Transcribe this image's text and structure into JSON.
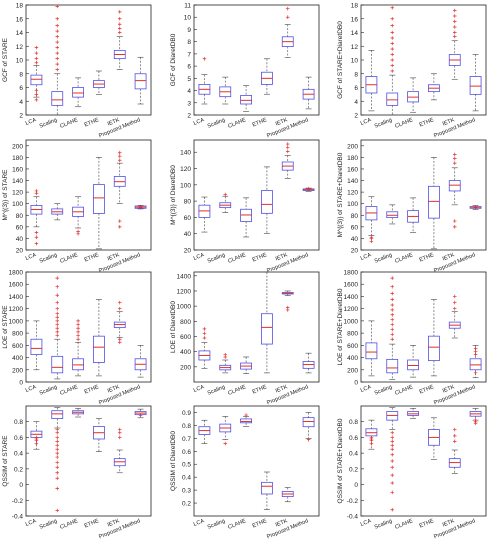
{
  "categories": [
    "LCA",
    "Scaling",
    "CLAHE",
    "ETHE",
    "IETK",
    "Proposed Method"
  ],
  "colors": {
    "box": "#5050e6",
    "median": "#e03030",
    "outlier": "#e03030",
    "whisker": "#444444",
    "axis": "#222222"
  },
  "chart_data": [
    {
      "type": "box",
      "ylabel": "GCF of STARE",
      "ylim": [
        2,
        18
      ],
      "yticks": [
        2,
        4,
        6,
        8,
        10,
        12,
        14,
        16,
        18
      ],
      "boxes": [
        {
          "q1": 6.4,
          "median": 7.2,
          "q3": 7.8,
          "low": 4.6,
          "high": 9.2,
          "outliers": [
            4.2,
            5.0,
            5.6,
            9.6,
            10.2,
            11.0,
            11.8
          ]
        },
        {
          "q1": 3.4,
          "median": 4.2,
          "q3": 5.4,
          "low": 2.0,
          "high": 8.0,
          "outliers": [
            8.6,
            9.4,
            10.2,
            11.0,
            11.8,
            12.6,
            13.4,
            14.2,
            15.0,
            16.0,
            17.8
          ]
        },
        {
          "q1": 4.6,
          "median": 5.2,
          "q3": 6.0,
          "low": 3.2,
          "high": 7.4,
          "outliers": []
        },
        {
          "q1": 6.0,
          "median": 6.5,
          "q3": 7.0,
          "low": 5.0,
          "high": 8.4,
          "outliers": []
        },
        {
          "q1": 10.2,
          "median": 10.8,
          "q3": 11.4,
          "low": 8.6,
          "high": 13.4,
          "outliers": [
            14.0,
            14.6,
            15.2,
            16.0,
            17.0
          ]
        },
        {
          "q1": 5.8,
          "median": 7.0,
          "q3": 8.0,
          "low": 3.6,
          "high": 10.4,
          "outliers": []
        }
      ]
    },
    {
      "type": "box",
      "ylabel": "GCF of DiaretDB0",
      "ylim": [
        2,
        11
      ],
      "yticks": [
        2,
        3,
        4,
        5,
        6,
        7,
        8,
        9,
        10,
        11
      ],
      "boxes": [
        {
          "q1": 3.7,
          "median": 4.1,
          "q3": 4.5,
          "low": 2.9,
          "high": 5.3,
          "outliers": [
            6.6
          ]
        },
        {
          "q1": 3.5,
          "median": 3.9,
          "q3": 4.3,
          "low": 2.9,
          "high": 5.1,
          "outliers": []
        },
        {
          "q1": 2.9,
          "median": 3.2,
          "q3": 3.6,
          "low": 2.3,
          "high": 4.4,
          "outliers": []
        },
        {
          "q1": 4.5,
          "median": 5.0,
          "q3": 5.5,
          "low": 3.7,
          "high": 6.6,
          "outliers": []
        },
        {
          "q1": 7.6,
          "median": 8.0,
          "q3": 8.4,
          "low": 6.7,
          "high": 9.4,
          "outliers": [
            10.0,
            10.7
          ]
        },
        {
          "q1": 3.3,
          "median": 3.7,
          "q3": 4.1,
          "low": 2.5,
          "high": 5.1,
          "outliers": []
        }
      ]
    },
    {
      "type": "box",
      "ylabel": "GCF of STARE+DiaretDB0",
      "ylim": [
        2,
        18
      ],
      "yticks": [
        2,
        4,
        6,
        8,
        10,
        12,
        14,
        16,
        18
      ],
      "boxes": [
        {
          "q1": 5.2,
          "median": 6.4,
          "q3": 7.6,
          "low": 2.6,
          "high": 11.4,
          "outliers": []
        },
        {
          "q1": 3.4,
          "median": 4.2,
          "q3": 5.2,
          "low": 2.0,
          "high": 7.8,
          "outliers": [
            8.4,
            9.2,
            10.0,
            10.8,
            11.6,
            12.4,
            13.2,
            14.0,
            15.0,
            16.0,
            17.6
          ]
        },
        {
          "q1": 3.9,
          "median": 4.6,
          "q3": 5.4,
          "low": 2.4,
          "high": 7.4,
          "outliers": []
        },
        {
          "q1": 5.4,
          "median": 5.9,
          "q3": 6.4,
          "low": 4.2,
          "high": 8.0,
          "outliers": []
        },
        {
          "q1": 9.2,
          "median": 10.0,
          "q3": 10.8,
          "low": 7.2,
          "high": 12.8,
          "outliers": [
            13.4,
            14.0,
            14.8,
            15.6,
            16.4,
            17.2
          ]
        },
        {
          "q1": 5.0,
          "median": 6.2,
          "q3": 7.6,
          "low": 2.6,
          "high": 10.8,
          "outliers": []
        }
      ]
    },
    {
      "type": "box",
      "ylabel": "M^{(3)} of STARE",
      "ylim": [
        20,
        210
      ],
      "yticks": [
        20,
        40,
        60,
        80,
        100,
        120,
        140,
        160,
        180,
        200
      ],
      "boxes": [
        {
          "q1": 82,
          "median": 90,
          "q3": 97,
          "low": 60,
          "high": 112,
          "outliers": [
            50,
            42,
            31,
            118,
            122
          ]
        },
        {
          "q1": 82,
          "median": 86,
          "q3": 91,
          "low": 72,
          "high": 100,
          "outliers": []
        },
        {
          "q1": 78,
          "median": 86,
          "q3": 94,
          "low": 58,
          "high": 112,
          "outliers": [
            52,
            48
          ]
        },
        {
          "q1": 83,
          "median": 110,
          "q3": 133,
          "low": 22,
          "high": 180,
          "outliers": []
        },
        {
          "q1": 130,
          "median": 138,
          "q3": 147,
          "low": 100,
          "high": 170,
          "outliers": [
            175,
            182,
            188,
            60,
            70
          ]
        },
        {
          "q1": 92,
          "median": 94,
          "q3": 96,
          "low": 91,
          "high": 97,
          "outliers": [
            93,
            95
          ]
        }
      ]
    },
    {
      "type": "box",
      "ylabel": "M^{(3)} of DiaretDB0",
      "ylim": [
        20,
        155
      ],
      "yticks": [
        20,
        40,
        60,
        80,
        100,
        120,
        140
      ],
      "boxes": [
        {
          "q1": 60,
          "median": 68,
          "q3": 75,
          "low": 42,
          "high": 85,
          "outliers": []
        },
        {
          "q1": 72,
          "median": 75,
          "q3": 78,
          "low": 66,
          "high": 86,
          "outliers": [
            88
          ]
        },
        {
          "q1": 55,
          "median": 63,
          "q3": 70,
          "low": 36,
          "high": 84,
          "outliers": []
        },
        {
          "q1": 65,
          "median": 76,
          "q3": 93,
          "low": 40,
          "high": 122,
          "outliers": []
        },
        {
          "q1": 118,
          "median": 123,
          "q3": 128,
          "low": 108,
          "high": 136,
          "outliers": [
            141,
            146,
            150
          ]
        },
        {
          "q1": 93,
          "median": 94,
          "q3": 95,
          "low": 92,
          "high": 96,
          "outliers": [
            95
          ]
        }
      ]
    },
    {
      "type": "box",
      "ylabel": "M^{(3)} of STARE+DiaretDB0",
      "ylim": [
        20,
        210
      ],
      "yticks": [
        20,
        40,
        60,
        80,
        100,
        120,
        140,
        160,
        180,
        200
      ],
      "boxes": [
        {
          "q1": 72,
          "median": 84,
          "q3": 95,
          "low": 45,
          "high": 112,
          "outliers": [
            40,
            35,
            42
          ]
        },
        {
          "q1": 76,
          "median": 80,
          "q3": 86,
          "low": 65,
          "high": 98,
          "outliers": []
        },
        {
          "q1": 68,
          "median": 78,
          "q3": 88,
          "low": 50,
          "high": 110,
          "outliers": []
        },
        {
          "q1": 75,
          "median": 104,
          "q3": 130,
          "low": 22,
          "high": 180,
          "outliers": []
        },
        {
          "q1": 122,
          "median": 132,
          "q3": 140,
          "low": 98,
          "high": 162,
          "outliers": [
            170,
            178,
            185,
            60,
            70
          ]
        },
        {
          "q1": 92,
          "median": 93,
          "q3": 95,
          "low": 90,
          "high": 97,
          "outliers": [
            94
          ]
        }
      ]
    },
    {
      "type": "box",
      "ylabel": "LOE of STARE",
      "ylim": [
        0,
        1800
      ],
      "yticks": [
        0,
        200,
        400,
        600,
        800,
        1000,
        1200,
        1400,
        1600,
        1800
      ],
      "boxes": [
        {
          "q1": 450,
          "median": 550,
          "q3": 700,
          "low": 200,
          "high": 1000,
          "outliers": []
        },
        {
          "q1": 150,
          "median": 240,
          "q3": 420,
          "low": 50,
          "high": 700,
          "outliers": [
            760,
            820,
            880,
            940,
            1000,
            1060,
            1120,
            1200,
            1300,
            1420,
            1560,
            1700
          ]
        },
        {
          "q1": 200,
          "median": 280,
          "q3": 380,
          "low": 100,
          "high": 650,
          "outliers": [
            700,
            760,
            820,
            880,
            940,
            1000
          ]
        },
        {
          "q1": 320,
          "median": 570,
          "q3": 750,
          "low": 100,
          "high": 1350,
          "outliers": []
        },
        {
          "q1": 890,
          "median": 940,
          "q3": 980,
          "low": 730,
          "high": 1150,
          "outliers": [
            650,
            700,
            1200,
            1300
          ]
        },
        {
          "q1": 200,
          "median": 290,
          "q3": 380,
          "low": 80,
          "high": 600,
          "outliers": []
        }
      ]
    },
    {
      "type": "box",
      "ylabel": "LOE of DiaretDB0",
      "ylim": [
        0,
        1450
      ],
      "yticks": [
        200,
        400,
        600,
        800,
        1000,
        1200,
        1400
      ],
      "boxes": [
        {
          "q1": 290,
          "median": 350,
          "q3": 410,
          "low": 180,
          "high": 520,
          "outliers": [
            580,
            640,
            700
          ]
        },
        {
          "q1": 160,
          "median": 190,
          "q3": 220,
          "low": 120,
          "high": 290,
          "outliers": [
            330,
            360
          ]
        },
        {
          "q1": 170,
          "median": 210,
          "q3": 250,
          "low": 110,
          "high": 330,
          "outliers": []
        },
        {
          "q1": 500,
          "median": 720,
          "q3": 900,
          "low": 120,
          "high": 1450,
          "outliers": []
        },
        {
          "q1": 1160,
          "median": 1170,
          "q3": 1180,
          "low": 1140,
          "high": 1200,
          "outliers": [
            950,
            980
          ]
        },
        {
          "q1": 180,
          "median": 230,
          "q3": 270,
          "low": 120,
          "high": 380,
          "outliers": []
        }
      ]
    },
    {
      "type": "box",
      "ylabel": "LOE of STARE+DiaretDB0",
      "ylim": [
        0,
        1800
      ],
      "yticks": [
        0,
        200,
        400,
        600,
        800,
        1000,
        1200,
        1400,
        1600,
        1800
      ],
      "boxes": [
        {
          "q1": 380,
          "median": 490,
          "q3": 640,
          "low": 100,
          "high": 1000,
          "outliers": []
        },
        {
          "q1": 150,
          "median": 230,
          "q3": 370,
          "low": 40,
          "high": 620,
          "outliers": [
            700,
            780,
            860,
            940,
            1020,
            1100,
            1180,
            1260,
            1350,
            1450,
            1560,
            1700
          ]
        },
        {
          "q1": 200,
          "median": 270,
          "q3": 360,
          "low": 80,
          "high": 600,
          "outliers": []
        },
        {
          "q1": 350,
          "median": 570,
          "q3": 750,
          "low": 100,
          "high": 1350,
          "outliers": []
        },
        {
          "q1": 880,
          "median": 930,
          "q3": 980,
          "low": 720,
          "high": 1150,
          "outliers": [
            1200,
            1300,
            1400
          ]
        },
        {
          "q1": 200,
          "median": 280,
          "q3": 380,
          "low": 70,
          "high": 600,
          "outliers": [
            150,
            450,
            500,
            550
          ]
        }
      ]
    },
    {
      "type": "box",
      "ylabel": "QSSIM of STARE",
      "ylim": [
        -0.4,
        1.0
      ],
      "yticks": [
        -0.4,
        -0.2,
        0,
        0.2,
        0.4,
        0.6,
        0.8
      ],
      "boxes": [
        {
          "q1": 0.6,
          "median": 0.64,
          "q3": 0.68,
          "low": 0.45,
          "high": 0.8,
          "outliers": [
            0.52,
            0.56,
            0.58,
            0.6
          ]
        },
        {
          "q1": 0.84,
          "median": 0.9,
          "q3": 0.94,
          "low": 0.72,
          "high": 0.98,
          "outliers": [
            0.7,
            0.66,
            0.6,
            0.55,
            0.5,
            0.45,
            0.4,
            0.35,
            0.28,
            0.22,
            0.15,
            0.08,
            -0.05,
            -0.33
          ]
        },
        {
          "q1": 0.9,
          "median": 0.92,
          "q3": 0.94,
          "low": 0.86,
          "high": 0.97,
          "outliers": []
        },
        {
          "q1": 0.58,
          "median": 0.66,
          "q3": 0.74,
          "low": 0.42,
          "high": 0.84,
          "outliers": []
        },
        {
          "q1": 0.24,
          "median": 0.29,
          "q3": 0.33,
          "low": 0.15,
          "high": 0.44,
          "outliers": [
            0.6,
            0.66,
            0.7
          ]
        },
        {
          "q1": 0.89,
          "median": 0.91,
          "q3": 0.93,
          "low": 0.85,
          "high": 0.96,
          "outliers": [
            0.88
          ]
        }
      ]
    },
    {
      "type": "box",
      "ylabel": "QSSIM of DiaretDB0",
      "ylim": [
        0.1,
        0.95
      ],
      "yticks": [
        0.2,
        0.3,
        0.4,
        0.5,
        0.6,
        0.7,
        0.8,
        0.9
      ],
      "boxes": [
        {
          "q1": 0.73,
          "median": 0.76,
          "q3": 0.79,
          "low": 0.66,
          "high": 0.84,
          "outliers": []
        },
        {
          "q1": 0.75,
          "median": 0.78,
          "q3": 0.81,
          "low": 0.69,
          "high": 0.87,
          "outliers": [
            0.66
          ]
        },
        {
          "q1": 0.82,
          "median": 0.83,
          "q3": 0.85,
          "low": 0.79,
          "high": 0.87,
          "outliers": [
            0.88
          ]
        },
        {
          "q1": 0.27,
          "median": 0.33,
          "q3": 0.36,
          "low": 0.15,
          "high": 0.44,
          "outliers": []
        },
        {
          "q1": 0.25,
          "median": 0.27,
          "q3": 0.29,
          "low": 0.21,
          "high": 0.32,
          "outliers": []
        },
        {
          "q1": 0.79,
          "median": 0.83,
          "q3": 0.86,
          "low": 0.7,
          "high": 0.9,
          "outliers": [
            0.69
          ]
        }
      ]
    },
    {
      "type": "box",
      "ylabel": "QSSIM of STARE+DiaretDB0",
      "ylim": [
        -0.4,
        1.0
      ],
      "yticks": [
        -0.4,
        -0.2,
        0,
        0.2,
        0.4,
        0.6,
        0.8
      ],
      "boxes": [
        {
          "q1": 0.62,
          "median": 0.66,
          "q3": 0.71,
          "low": 0.45,
          "high": 0.82,
          "outliers": [
            0.52,
            0.56,
            0.58,
            0.6
          ]
        },
        {
          "q1": 0.82,
          "median": 0.88,
          "q3": 0.93,
          "low": 0.7,
          "high": 0.98,
          "outliers": [
            0.66,
            0.6,
            0.55,
            0.5,
            0.45,
            0.38,
            0.3,
            0.22,
            0.12,
            0.02,
            -0.1,
            -0.32
          ]
        },
        {
          "q1": 0.88,
          "median": 0.9,
          "q3": 0.93,
          "low": 0.84,
          "high": 0.97,
          "outliers": []
        },
        {
          "q1": 0.5,
          "median": 0.6,
          "q3": 0.7,
          "low": 0.32,
          "high": 0.85,
          "outliers": []
        },
        {
          "q1": 0.22,
          "median": 0.28,
          "q3": 0.33,
          "low": 0.14,
          "high": 0.44,
          "outliers": [
            0.55,
            0.62,
            0.7
          ]
        },
        {
          "q1": 0.87,
          "median": 0.9,
          "q3": 0.93,
          "low": 0.82,
          "high": 0.97,
          "outliers": [
            0.78,
            0.8,
            0.82
          ]
        }
      ]
    }
  ]
}
